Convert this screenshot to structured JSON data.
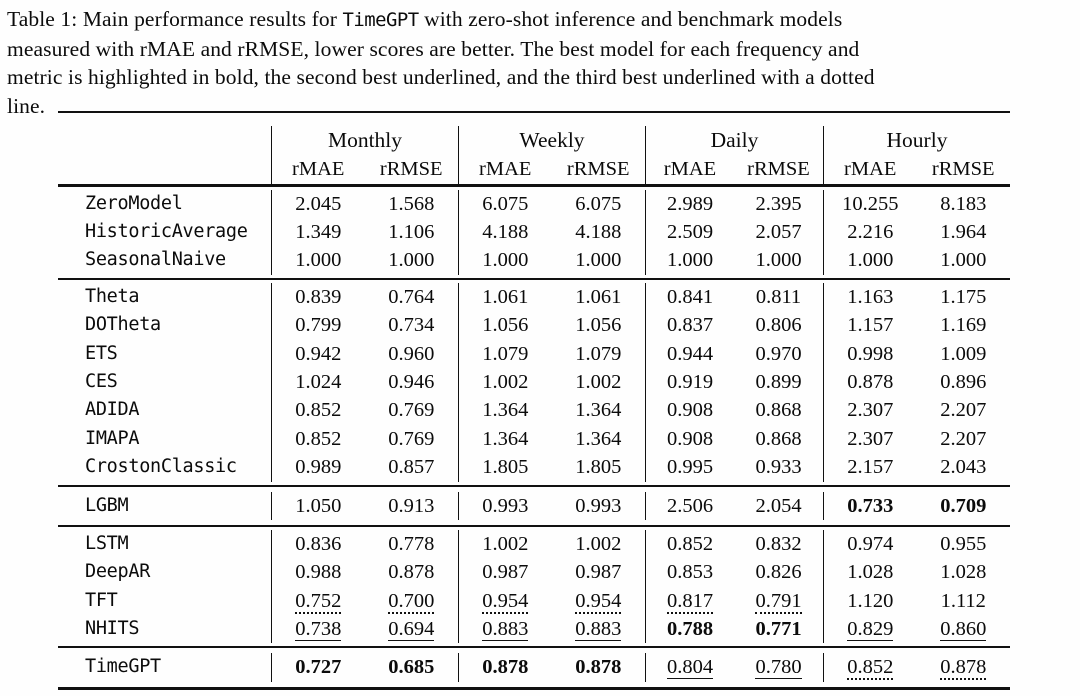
{
  "caption": {
    "lines": [
      [
        {
          "t": "Table 1: Main performance results for ",
          "tt": false
        },
        {
          "t": "TimeGPT",
          "tt": true
        },
        {
          "t": " with zero-shot inference and benchmark models",
          "tt": false
        }
      ],
      [
        {
          "t": "measured with rMAE and rRMSE, lower scores are better. The best model for each frequency and",
          "tt": false
        }
      ],
      [
        {
          "t": "metric is highlighted in bold, the second best underlined, and the third best underlined with a dotted",
          "tt": false
        }
      ],
      [
        {
          "t": "line.",
          "tt": false
        }
      ]
    ]
  },
  "table": {
    "column_groups": [
      "Monthly",
      "Weekly",
      "Daily",
      "Hourly"
    ],
    "sub_headers": [
      "rMAE",
      "rRMSE"
    ],
    "style_legend": {
      "b": "bold = best",
      "u": "underline = second best",
      "d": "dotted underline = third best"
    },
    "groups": [
      {
        "rows": [
          {
            "model": "ZeroModel",
            "values": [
              "2.045",
              "1.568",
              "6.075",
              "6.075",
              "2.989",
              "2.395",
              "10.255",
              "8.183"
            ],
            "styles": [
              "",
              "",
              "",
              "",
              "",
              "",
              "",
              ""
            ]
          },
          {
            "model": "HistoricAverage",
            "values": [
              "1.349",
              "1.106",
              "4.188",
              "4.188",
              "2.509",
              "2.057",
              "2.216",
              "1.964"
            ],
            "styles": [
              "",
              "",
              "",
              "",
              "",
              "",
              "",
              ""
            ]
          },
          {
            "model": "SeasonalNaive",
            "values": [
              "1.000",
              "1.000",
              "1.000",
              "1.000",
              "1.000",
              "1.000",
              "1.000",
              "1.000"
            ],
            "styles": [
              "",
              "",
              "",
              "",
              "",
              "",
              "",
              ""
            ]
          }
        ]
      },
      {
        "rows": [
          {
            "model": "Theta",
            "values": [
              "0.839",
              "0.764",
              "1.061",
              "1.061",
              "0.841",
              "0.811",
              "1.163",
              "1.175"
            ],
            "styles": [
              "",
              "",
              "",
              "",
              "",
              "",
              "",
              ""
            ]
          },
          {
            "model": "DOTheta",
            "values": [
              "0.799",
              "0.734",
              "1.056",
              "1.056",
              "0.837",
              "0.806",
              "1.157",
              "1.169"
            ],
            "styles": [
              "",
              "",
              "",
              "",
              "",
              "",
              "",
              ""
            ]
          },
          {
            "model": "ETS",
            "values": [
              "0.942",
              "0.960",
              "1.079",
              "1.079",
              "0.944",
              "0.970",
              "0.998",
              "1.009"
            ],
            "styles": [
              "",
              "",
              "",
              "",
              "",
              "",
              "",
              ""
            ]
          },
          {
            "model": "CES",
            "values": [
              "1.024",
              "0.946",
              "1.002",
              "1.002",
              "0.919",
              "0.899",
              "0.878",
              "0.896"
            ],
            "styles": [
              "",
              "",
              "",
              "",
              "",
              "",
              "",
              ""
            ]
          },
          {
            "model": "ADIDA",
            "values": [
              "0.852",
              "0.769",
              "1.364",
              "1.364",
              "0.908",
              "0.868",
              "2.307",
              "2.207"
            ],
            "styles": [
              "",
              "",
              "",
              "",
              "",
              "",
              "",
              ""
            ]
          },
          {
            "model": "IMAPA",
            "values": [
              "0.852",
              "0.769",
              "1.364",
              "1.364",
              "0.908",
              "0.868",
              "2.307",
              "2.207"
            ],
            "styles": [
              "",
              "",
              "",
              "",
              "",
              "",
              "",
              ""
            ]
          },
          {
            "model": "CrostonClassic",
            "values": [
              "0.989",
              "0.857",
              "1.805",
              "1.805",
              "0.995",
              "0.933",
              "2.157",
              "2.043"
            ],
            "styles": [
              "",
              "",
              "",
              "",
              "",
              "",
              "",
              ""
            ]
          }
        ]
      },
      {
        "rows": [
          {
            "model": "LGBM",
            "values": [
              "1.050",
              "0.913",
              "0.993",
              "0.993",
              "2.506",
              "2.054",
              "0.733",
              "0.709"
            ],
            "styles": [
              "",
              "",
              "",
              "",
              "",
              "",
              "b",
              "b"
            ]
          }
        ]
      },
      {
        "rows": [
          {
            "model": "LSTM",
            "values": [
              "0.836",
              "0.778",
              "1.002",
              "1.002",
              "0.852",
              "0.832",
              "0.974",
              "0.955"
            ],
            "styles": [
              "",
              "",
              "",
              "",
              "",
              "",
              "",
              ""
            ]
          },
          {
            "model": "DeepAR",
            "values": [
              "0.988",
              "0.878",
              "0.987",
              "0.987",
              "0.853",
              "0.826",
              "1.028",
              "1.028"
            ],
            "styles": [
              "",
              "",
              "",
              "",
              "",
              "",
              "",
              ""
            ]
          },
          {
            "model": "TFT",
            "values": [
              "0.752",
              "0.700",
              "0.954",
              "0.954",
              "0.817",
              "0.791",
              "1.120",
              "1.112"
            ],
            "styles": [
              "d",
              "d",
              "d",
              "d",
              "d",
              "d",
              "",
              ""
            ]
          },
          {
            "model": "NHITS",
            "values": [
              "0.738",
              "0.694",
              "0.883",
              "0.883",
              "0.788",
              "0.771",
              "0.829",
              "0.860"
            ],
            "styles": [
              "u",
              "u",
              "u",
              "u",
              "b",
              "b",
              "u",
              "u"
            ]
          }
        ]
      },
      {
        "rows": [
          {
            "model": "TimeGPT",
            "values": [
              "0.727",
              "0.685",
              "0.878",
              "0.878",
              "0.804",
              "0.780",
              "0.852",
              "0.878"
            ],
            "styles": [
              "b",
              "b",
              "b",
              "b",
              "u",
              "u",
              "d",
              "d"
            ]
          }
        ]
      }
    ]
  }
}
